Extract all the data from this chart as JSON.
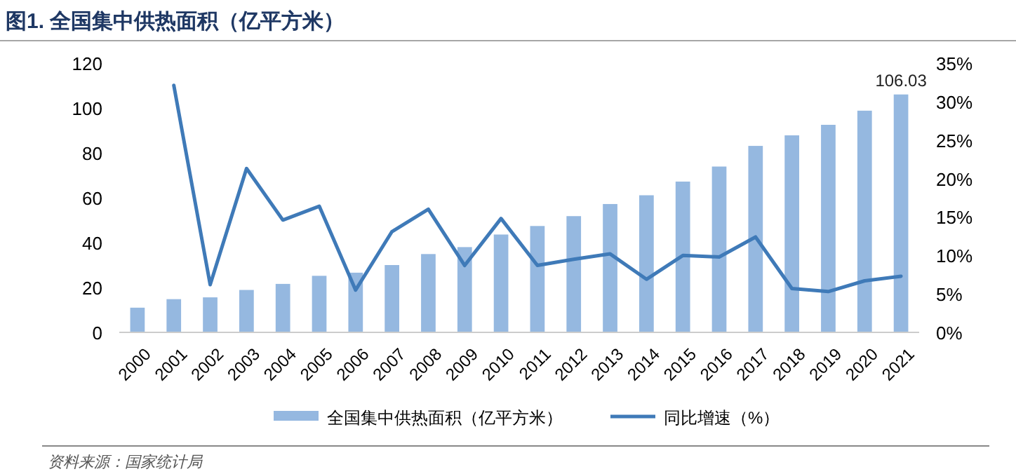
{
  "chart_data": {
    "type": "bar",
    "title": "图1. 全国集中供热面积（亿平方米）",
    "categories": [
      "2000",
      "2001",
      "2002",
      "2003",
      "2004",
      "2005",
      "2006",
      "2007",
      "2008",
      "2009",
      "2010",
      "2011",
      "2012",
      "2013",
      "2014",
      "2015",
      "2016",
      "2017",
      "2018",
      "2019",
      "2020",
      "2021"
    ],
    "series": [
      {
        "name": "全国集中供热面积（亿平方米）",
        "color": "#95b8e0",
        "values": [
          11,
          14.8,
          15.6,
          18.9,
          21.6,
          25.2,
          26.6,
          30,
          34.9,
          38,
          43.6,
          47.4,
          51.8,
          57.2,
          61.1,
          67.2,
          73.9,
          83.1,
          87.8,
          92.5,
          98.8,
          106.03
        ],
        "value_labels": [
          null,
          null,
          null,
          null,
          null,
          null,
          null,
          null,
          null,
          null,
          null,
          null,
          null,
          null,
          null,
          null,
          null,
          null,
          null,
          null,
          null,
          "106.03"
        ]
      },
      {
        "name": "同比增速（%）",
        "type": "line",
        "axis": "y2",
        "color": "#3f7ab8",
        "values": [
          null,
          32.1,
          6.2,
          21.3,
          14.6,
          16.4,
          5.5,
          13.1,
          16,
          8.7,
          14.8,
          8.7,
          9.5,
          10.2,
          6.9,
          10,
          9.8,
          12.4,
          5.7,
          5.3,
          6.7,
          7.3
        ]
      }
    ],
    "ylim": [
      0,
      120
    ],
    "yticks": [
      0,
      20,
      40,
      60,
      80,
      100,
      120
    ],
    "y2lim": [
      0,
      35
    ],
    "y2ticks": [
      {
        "value": 0,
        "label": "0%"
      },
      {
        "value": 5,
        "label": "5%"
      },
      {
        "value": 10,
        "label": "10%"
      },
      {
        "value": 15,
        "label": "15%"
      },
      {
        "value": 20,
        "label": "20%"
      },
      {
        "value": 25,
        "label": "25%"
      },
      {
        "value": 30,
        "label": "30%"
      },
      {
        "value": 35,
        "label": "35%"
      }
    ],
    "legend": "bottom",
    "annotations": [
      "资料来源：国家统计局"
    ]
  }
}
